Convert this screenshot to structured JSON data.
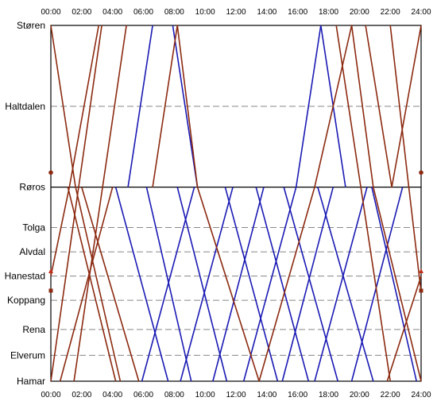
{
  "chart_data": {
    "type": "line",
    "title": "",
    "xlabel": "",
    "ylabel": "",
    "xlim": [
      0,
      24
    ],
    "x_ticks": [
      "00:00",
      "02:00",
      "04:00",
      "06:00",
      "08:00",
      "10:00",
      "12:00",
      "14:00",
      "16:00",
      "18:00",
      "20:00",
      "22:00",
      "24:00"
    ],
    "stations": [
      {
        "name": "Støren",
        "km": 0,
        "grid": "none"
      },
      {
        "name": "Haltdalen",
        "km": 100,
        "grid": "dashed"
      },
      {
        "name": "Røros",
        "km": 200,
        "grid": "solid"
      },
      {
        "name": "Tolga",
        "km": 250,
        "grid": "dashed"
      },
      {
        "name": "Alvdal",
        "km": 280,
        "grid": "dashed"
      },
      {
        "name": "Hanestad",
        "km": 310,
        "grid": "dashed"
      },
      {
        "name": "Koppang",
        "km": 340,
        "grid": "dashed"
      },
      {
        "name": "Rena",
        "km": 376,
        "grid": "dashed"
      },
      {
        "name": "Elverum",
        "km": 408,
        "grid": "dashed"
      },
      {
        "name": "Hamar",
        "km": 440,
        "grid": "none"
      }
    ],
    "grid": true,
    "colors": {
      "passenger": "#1a1ab4",
      "freight": "#8b2a10",
      "grid": "#888888",
      "frame": "#000000"
    },
    "series": [
      {
        "category": "passenger",
        "points": [
          [
            5.0,
            200
          ],
          [
            6.6,
            0
          ]
        ]
      },
      {
        "category": "passenger",
        "points": [
          [
            7.9,
            0
          ],
          [
            9.5,
            200
          ]
        ]
      },
      {
        "category": "passenger",
        "points": [
          [
            15.9,
            200
          ],
          [
            17.5,
            0
          ]
        ]
      },
      {
        "category": "passenger",
        "points": [
          [
            17.5,
            0
          ],
          [
            19.1,
            200
          ]
        ]
      },
      {
        "category": "passenger",
        "points": [
          [
            4.2,
            200
          ],
          [
            7.6,
            440
          ]
        ]
      },
      {
        "category": "passenger",
        "points": [
          [
            6.2,
            200
          ],
          [
            9.1,
            440
          ]
        ]
      },
      {
        "category": "passenger",
        "points": [
          [
            8.2,
            200
          ],
          [
            11.4,
            440
          ]
        ]
      },
      {
        "category": "passenger",
        "points": [
          [
            11.3,
            200
          ],
          [
            14.7,
            440
          ]
        ]
      },
      {
        "category": "passenger",
        "points": [
          [
            13.3,
            200
          ],
          [
            16.7,
            440
          ]
        ]
      },
      {
        "category": "passenger",
        "points": [
          [
            15.1,
            200
          ],
          [
            18.6,
            440
          ]
        ]
      },
      {
        "category": "passenger",
        "points": [
          [
            17.3,
            200
          ],
          [
            20.9,
            440
          ]
        ]
      },
      {
        "category": "passenger",
        "points": [
          [
            5.9,
            440
          ],
          [
            9.3,
            200
          ]
        ]
      },
      {
        "category": "passenger",
        "points": [
          [
            8.4,
            440
          ],
          [
            11.8,
            200
          ]
        ]
      },
      {
        "category": "passenger",
        "points": [
          [
            10.5,
            440
          ],
          [
            13.8,
            200
          ]
        ]
      },
      {
        "category": "passenger",
        "points": [
          [
            12.5,
            440
          ],
          [
            15.9,
            200
          ]
        ]
      },
      {
        "category": "passenger",
        "points": [
          [
            15.0,
            440
          ],
          [
            18.3,
            200
          ]
        ]
      },
      {
        "category": "passenger",
        "points": [
          [
            17.1,
            440
          ],
          [
            20.5,
            200
          ]
        ]
      },
      {
        "category": "passenger",
        "points": [
          [
            19.5,
            440
          ],
          [
            22.8,
            200
          ]
        ]
      },
      {
        "category": "passenger",
        "points": [
          [
            20.8,
            200
          ],
          [
            23.7,
            440
          ]
        ]
      },
      {
        "category": "freight",
        "points": [
          [
            0.0,
            0
          ],
          [
            1.6,
            200
          ],
          [
            4.5,
            440
          ]
        ]
      },
      {
        "category": "freight",
        "points": [
          [
            0.0,
            310
          ],
          [
            1.2,
            200
          ],
          [
            3.1,
            0
          ]
        ]
      },
      {
        "category": "freight",
        "points": [
          [
            1.5,
            440
          ],
          [
            4.9,
            0
          ]
        ]
      },
      {
        "category": "freight",
        "points": [
          [
            0.0,
            440
          ],
          [
            3.3,
            0
          ]
        ]
      },
      {
        "category": "freight",
        "points": [
          [
            0.6,
            440
          ],
          [
            4.0,
            200
          ]
        ]
      },
      {
        "category": "freight",
        "points": [
          [
            1.1,
            200
          ],
          [
            4.2,
            440
          ]
        ]
      },
      {
        "category": "freight",
        "points": [
          [
            2.0,
            200
          ],
          [
            5.7,
            440
          ]
        ]
      },
      {
        "category": "freight",
        "points": [
          [
            6.6,
            200
          ],
          [
            8.2,
            0
          ],
          [
            9.5,
            200
          ],
          [
            13.5,
            440
          ]
        ]
      },
      {
        "category": "freight",
        "points": [
          [
            13.5,
            440
          ],
          [
            17.1,
            200
          ],
          [
            19.5,
            0
          ],
          [
            20.9,
            200
          ],
          [
            24.0,
            440
          ]
        ]
      },
      {
        "category": "freight",
        "points": [
          [
            21.8,
            440
          ],
          [
            24.0,
            310
          ]
        ]
      },
      {
        "category": "freight",
        "points": [
          [
            22.0,
            0
          ],
          [
            23.2,
            200
          ],
          [
            24.0,
            330
          ]
        ]
      },
      {
        "category": "freight",
        "points": [
          [
            18.5,
            0
          ],
          [
            22.0,
            440
          ]
        ]
      },
      {
        "category": "freight",
        "points": [
          [
            20.4,
            0
          ],
          [
            22.1,
            200
          ],
          [
            24.0,
            0
          ]
        ]
      }
    ],
    "markers": [
      {
        "x": 0.0,
        "km": 182,
        "shape": "circle"
      },
      {
        "x": 24.0,
        "km": 182,
        "shape": "circle"
      },
      {
        "x": 0.0,
        "km": 304,
        "shape": "triangle"
      },
      {
        "x": 24.0,
        "km": 304,
        "shape": "triangle"
      },
      {
        "x": 0.0,
        "km": 328,
        "shape": "square"
      },
      {
        "x": 24.0,
        "km": 328,
        "shape": "square"
      }
    ]
  }
}
